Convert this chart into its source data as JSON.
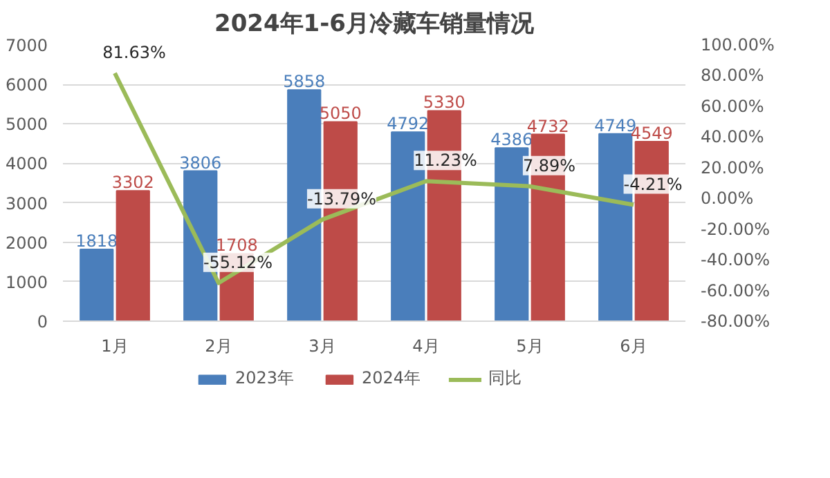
{
  "chart_data": {
    "type": "bar",
    "title": "2024年1-6月冷藏车销量情况",
    "categories": [
      "1月",
      "2月",
      "3月",
      "4月",
      "5月",
      "6月"
    ],
    "series": [
      {
        "name": "2023年",
        "color": "#4a7ebb",
        "values": [
          1818,
          3806,
          5858,
          4792,
          4386,
          4749
        ],
        "value_labels": [
          "1818",
          "3806",
          "5858",
          "4792",
          "4386",
          "4749"
        ]
      },
      {
        "name": "2024年",
        "color": "#be4b48",
        "values": [
          3302,
          1708,
          5050,
          5330,
          4732,
          4549
        ],
        "value_labels": [
          "3302",
          "1708",
          "5050",
          "5330",
          "4732",
          "4549"
        ]
      },
      {
        "name": "同比",
        "type": "line",
        "axis": "y2",
        "color": "#9bbb59",
        "values": [
          81.63,
          -55.12,
          -13.79,
          11.23,
          7.89,
          -4.21
        ],
        "value_labels": [
          "81.63%",
          "-55.12%",
          "-13.79%",
          "11.23%",
          "7.89%",
          "-4.21%"
        ]
      }
    ],
    "ylim": [
      0,
      7000
    ],
    "yticks": [
      0,
      1000,
      2000,
      3000,
      4000,
      5000,
      6000,
      7000
    ],
    "y2lim": [
      -80,
      100
    ],
    "y2ticks": [
      {
        "value": -80,
        "label": "-80.00%"
      },
      {
        "value": -60,
        "label": "-60.00%"
      },
      {
        "value": -40,
        "label": "-40.00%"
      },
      {
        "value": -20,
        "label": "-20.00%"
      },
      {
        "value": 0,
        "label": "0.00%"
      },
      {
        "value": 20,
        "label": "20.00%"
      },
      {
        "value": 40,
        "label": "40.00%"
      },
      {
        "value": 60,
        "label": "60.00%"
      },
      {
        "value": 80,
        "label": "80.00%"
      },
      {
        "value": 100,
        "label": "100.00%"
      }
    ],
    "grid": "y",
    "legend": "bottom",
    "line_style": "solid",
    "marker": "none"
  }
}
